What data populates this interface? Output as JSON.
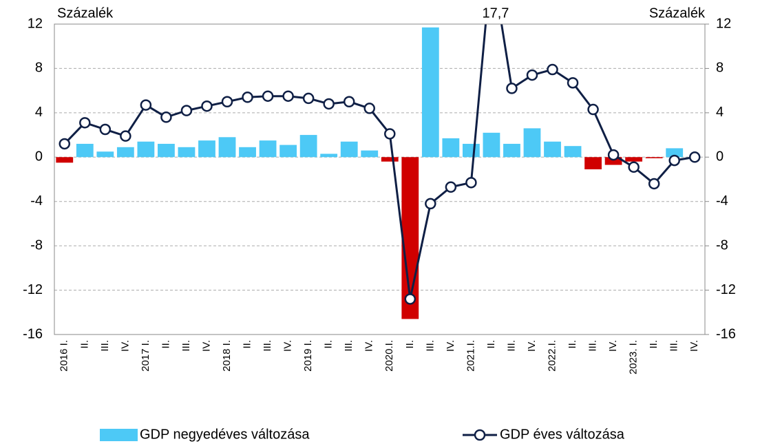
{
  "chart_data": {
    "type": "bar_line",
    "categories": [
      "2016 I.",
      "II.",
      "III.",
      "IV.",
      "2017 I.",
      "II.",
      "III.",
      "IV.",
      "2018 I.",
      "II.",
      "III.",
      "IV.",
      "2019 I.",
      "II.",
      "III.",
      "IV.",
      "2020.I.",
      "II.",
      "III.",
      "IV.",
      "2021.I.",
      "II.",
      "III.",
      "IV.",
      "2022.I.",
      "II.",
      "III.",
      "IV.",
      "2023. I.",
      "II.",
      "III.",
      "IV."
    ],
    "series": [
      {
        "name": "GDP negyedéves változása",
        "type": "bar",
        "color": "#4dc9f6",
        "negative_color": "#d00000",
        "values": [
          -0.5,
          1.2,
          0.5,
          0.9,
          1.4,
          1.2,
          0.9,
          1.5,
          1.8,
          0.9,
          1.5,
          1.1,
          2.0,
          0.3,
          1.4,
          0.6,
          -0.4,
          -14.6,
          11.7,
          1.7,
          1.2,
          2.2,
          1.2,
          2.6,
          1.4,
          1.0,
          -1.1,
          -0.7,
          -0.4,
          -0.1,
          0.8,
          0.0
        ]
      },
      {
        "name": "GDP éves változása",
        "type": "line",
        "color": "#0f1f45",
        "axis": "y2",
        "values": [
          1.2,
          3.1,
          2.5,
          1.9,
          4.7,
          3.6,
          4.2,
          4.6,
          5.0,
          5.4,
          5.5,
          5.5,
          5.3,
          4.8,
          5.0,
          4.4,
          2.1,
          -12.8,
          -4.2,
          -2.7,
          -2.3,
          17.7,
          6.2,
          7.4,
          7.9,
          6.7,
          4.3,
          0.2,
          -0.9,
          -2.4,
          -0.3,
          0.0
        ],
        "value_labels": [
          null,
          null,
          null,
          null,
          null,
          null,
          null,
          null,
          null,
          null,
          null,
          null,
          null,
          null,
          null,
          null,
          null,
          null,
          null,
          null,
          null,
          "17,7",
          null,
          null,
          null,
          null,
          null,
          null,
          null,
          null,
          null,
          null
        ]
      }
    ],
    "ylabel": "Százalék",
    "y2label": "Százalék",
    "ylim": [
      -16,
      12
    ],
    "yticks": [
      -16,
      -12,
      -8,
      -4,
      0,
      4,
      8,
      12
    ],
    "y2lim": [
      -16,
      12
    ],
    "y2ticks": [
      -16,
      -12,
      -8,
      -4,
      0,
      4,
      8,
      12
    ],
    "grid": true,
    "legend": "bottom"
  }
}
